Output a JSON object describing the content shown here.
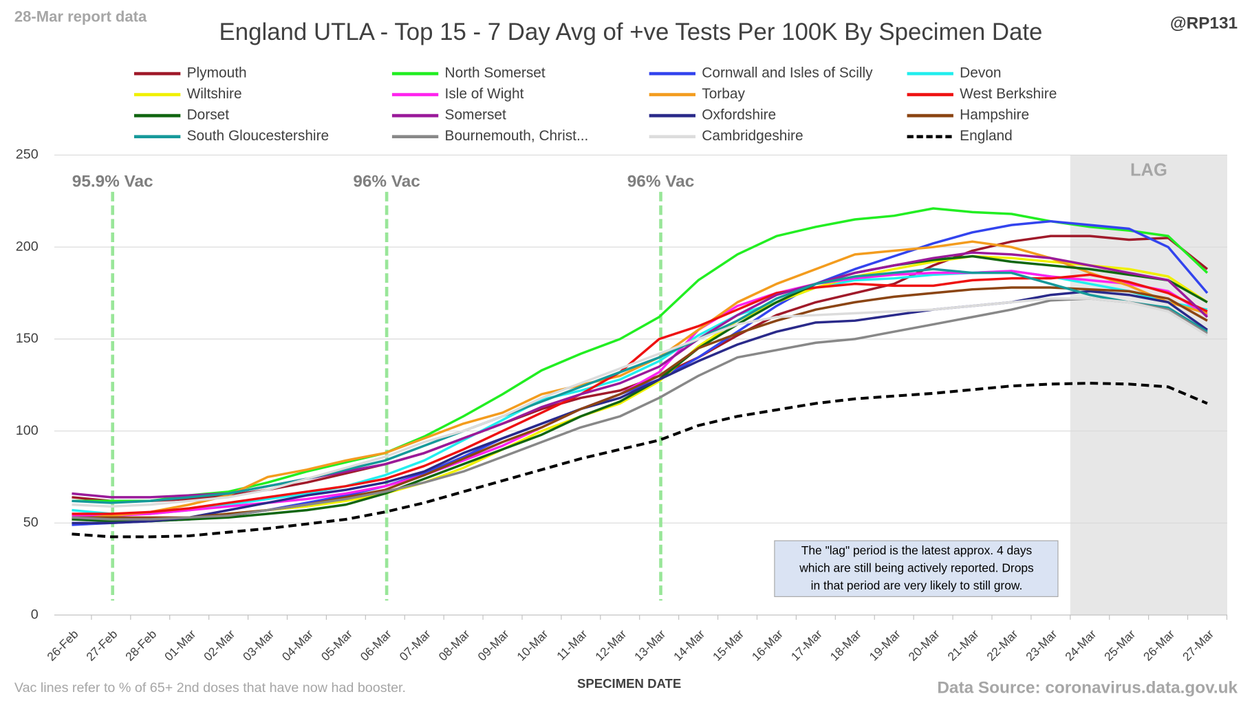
{
  "chart_data": {
    "type": "line",
    "title": "England UTLA - Top 15 - 7 Day Avg of +ve Tests Per 100K By Specimen Date",
    "report_note": "28-Mar report data",
    "author": "@RP131",
    "x_label": "SPECIMEN DATE",
    "footnote": "Vac lines refer to % of 65+ 2nd doses that have now had booster.",
    "source": "Data Source: coronavirus.data.gov.uk",
    "lag_label": "LAG",
    "lag_start": "24-Mar",
    "annotation_lines": [
      "The \"lag\" period is the latest approx. 4 days",
      "which are still being actively reported.  Drops",
      "in that period are very likely to still grow."
    ],
    "vac_lines": [
      {
        "category": "27-Feb",
        "label": "95.9% Vac"
      },
      {
        "category": "06-Mar",
        "label": "96% Vac"
      },
      {
        "category": "13-Mar",
        "label": "96% Vac"
      }
    ],
    "vac_color": "#99e699",
    "categories": [
      "26-Feb",
      "27-Feb",
      "28-Feb",
      "01-Mar",
      "02-Mar",
      "03-Mar",
      "04-Mar",
      "05-Mar",
      "06-Mar",
      "07-Mar",
      "08-Mar",
      "09-Mar",
      "10-Mar",
      "11-Mar",
      "12-Mar",
      "13-Mar",
      "14-Mar",
      "15-Mar",
      "16-Mar",
      "17-Mar",
      "18-Mar",
      "19-Mar",
      "20-Mar",
      "21-Mar",
      "22-Mar",
      "23-Mar",
      "24-Mar",
      "25-Mar",
      "26-Mar",
      "27-Mar"
    ],
    "ylim": [
      0,
      250
    ],
    "yticks": [
      0,
      50,
      100,
      150,
      200,
      250
    ],
    "grid": true,
    "series": [
      {
        "name": "Plymouth",
        "color": "#a01a2a",
        "values": [
          64,
          62,
          62,
          63,
          65,
          68,
          72,
          77,
          82,
          88,
          96,
          104,
          112,
          118,
          122,
          130,
          140,
          152,
          163,
          170,
          175,
          180,
          190,
          198,
          203,
          206,
          206,
          204,
          205,
          188
        ]
      },
      {
        "name": "North Somerset",
        "color": "#22ee22",
        "values": [
          62,
          62,
          62,
          65,
          67,
          72,
          78,
          83,
          88,
          97,
          108,
          120,
          133,
          142,
          150,
          162,
          182,
          196,
          206,
          211,
          215,
          217,
          221,
          219,
          218,
          214,
          211,
          209,
          206,
          186
        ]
      },
      {
        "name": "Cornwall and Isles of Scilly",
        "color": "#3344ee",
        "values": [
          49,
          50,
          51,
          52,
          54,
          57,
          61,
          65,
          70,
          77,
          86,
          96,
          104,
          112,
          120,
          128,
          140,
          154,
          168,
          180,
          188,
          195,
          202,
          208,
          212,
          214,
          212,
          210,
          200,
          175
        ]
      },
      {
        "name": "Devon",
        "color": "#22eeee",
        "values": [
          57,
          55,
          55,
          57,
          60,
          63,
          66,
          70,
          76,
          84,
          95,
          106,
          117,
          122,
          128,
          138,
          152,
          163,
          170,
          178,
          182,
          183,
          185,
          186,
          187,
          184,
          180,
          176,
          170,
          166
        ]
      },
      {
        "name": "Wiltshire",
        "color": "#f0f000",
        "values": [
          53,
          52,
          52,
          53,
          55,
          57,
          59,
          62,
          66,
          72,
          80,
          90,
          100,
          108,
          115,
          127,
          146,
          160,
          170,
          178,
          184,
          188,
          192,
          195,
          194,
          192,
          190,
          188,
          184,
          170
        ]
      },
      {
        "name": "Isle of Wight",
        "color": "#ff22ee",
        "values": [
          54,
          54,
          55,
          57,
          59,
          61,
          63,
          66,
          70,
          76,
          84,
          92,
          102,
          112,
          120,
          132,
          155,
          168,
          175,
          180,
          183,
          185,
          186,
          186,
          187,
          184,
          182,
          180,
          176,
          163
        ]
      },
      {
        "name": "Torbay",
        "color": "#f39c1e",
        "values": [
          52,
          54,
          56,
          60,
          65,
          75,
          79,
          84,
          88,
          96,
          104,
          110,
          120,
          125,
          130,
          140,
          155,
          170,
          180,
          188,
          196,
          198,
          200,
          203,
          200,
          194,
          186,
          179,
          170,
          164
        ]
      },
      {
        "name": "West Berkshire",
        "color": "#ee1111",
        "values": [
          55,
          55,
          56,
          58,
          61,
          64,
          67,
          70,
          74,
          81,
          90,
          100,
          110,
          120,
          132,
          150,
          157,
          166,
          175,
          178,
          180,
          179,
          179,
          182,
          183,
          183,
          185,
          181,
          175,
          165
        ]
      },
      {
        "name": "Dorset",
        "color": "#116611",
        "values": [
          52,
          51,
          51,
          52,
          53,
          55,
          57,
          60,
          66,
          74,
          82,
          90,
          98,
          108,
          116,
          128,
          145,
          158,
          170,
          180,
          186,
          190,
          193,
          195,
          192,
          190,
          188,
          185,
          182,
          170
        ]
      },
      {
        "name": "Somerset",
        "color": "#9a1a9a",
        "values": [
          66,
          64,
          64,
          65,
          66,
          70,
          74,
          78,
          82,
          88,
          96,
          104,
          113,
          120,
          126,
          135,
          150,
          163,
          174,
          180,
          186,
          190,
          194,
          197,
          196,
          194,
          190,
          186,
          182,
          162
        ]
      },
      {
        "name": "Oxfordshire",
        "color": "#2a2a8a",
        "values": [
          50,
          50,
          51,
          53,
          57,
          61,
          65,
          68,
          72,
          78,
          88,
          96,
          104,
          112,
          118,
          128,
          138,
          147,
          154,
          159,
          160,
          163,
          166,
          168,
          170,
          174,
          176,
          174,
          170,
          155
        ]
      },
      {
        "name": "Hampshire",
        "color": "#8b4513",
        "values": [
          53,
          53,
          53,
          53,
          55,
          57,
          60,
          64,
          68,
          76,
          85,
          94,
          102,
          112,
          120,
          130,
          145,
          153,
          160,
          166,
          170,
          173,
          175,
          177,
          178,
          178,
          177,
          176,
          172,
          160
        ]
      },
      {
        "name": "South Gloucestershire",
        "color": "#16999a",
        "values": [
          62,
          61,
          62,
          64,
          66,
          70,
          74,
          79,
          84,
          92,
          100,
          108,
          116,
          124,
          132,
          140,
          150,
          160,
          172,
          180,
          184,
          186,
          188,
          186,
          186,
          180,
          174,
          170,
          167,
          154
        ]
      },
      {
        "name": "Bournemouth, Christ...",
        "color": "#888888",
        "values": [
          53,
          52,
          52,
          53,
          54,
          57,
          60,
          63,
          67,
          72,
          78,
          86,
          94,
          102,
          108,
          118,
          130,
          140,
          144,
          148,
          150,
          154,
          158,
          162,
          166,
          171,
          172,
          170,
          166,
          153
        ]
      },
      {
        "name": "Cambridgeshire",
        "color": "#dcdcdc",
        "values": [
          60,
          59,
          60,
          62,
          64,
          68,
          74,
          80,
          86,
          94,
          100,
          108,
          118,
          126,
          134,
          142,
          150,
          158,
          162,
          163,
          164,
          165,
          166,
          168,
          170,
          172,
          172,
          170,
          165,
          152
        ]
      },
      {
        "name": "England",
        "color": "#000000",
        "dashed": true,
        "values": [
          44,
          42.5,
          42.5,
          43,
          45,
          47,
          49.5,
          52,
          56,
          61,
          67,
          73,
          79,
          85,
          90,
          95,
          103,
          108,
          111.5,
          115,
          117.5,
          119,
          120.5,
          122.5,
          124.5,
          125.5,
          126,
          125.5,
          124,
          115
        ]
      }
    ]
  }
}
